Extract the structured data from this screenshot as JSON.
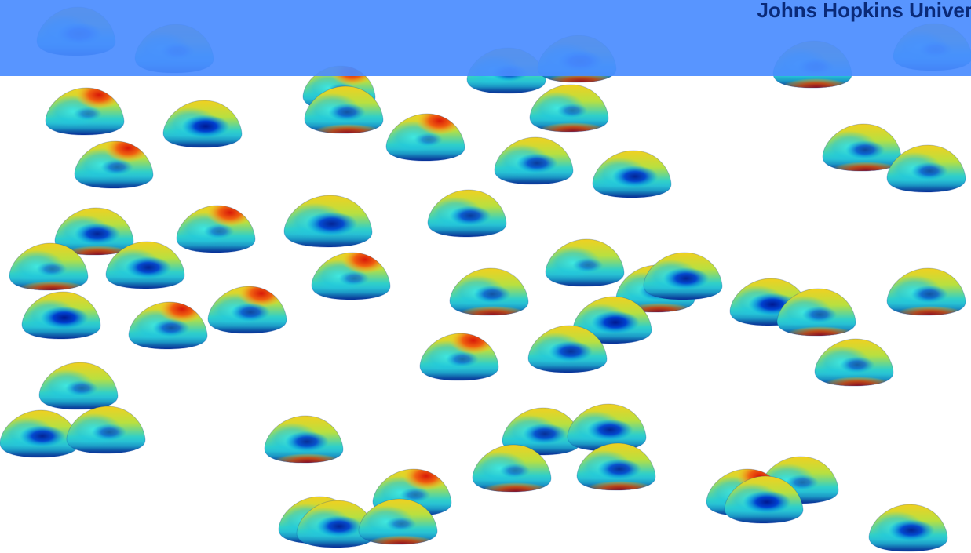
{
  "banner": {
    "text": "Johns Hopkins Univer",
    "color": "#4a8cff",
    "text_color": "#0a2a78"
  },
  "scene": {
    "subject": "colored 3D blob particles",
    "colormap": [
      "#0020a0",
      "#0050d8",
      "#00a8e0",
      "#30d8c8",
      "#b8e040",
      "#f0d020",
      "#f08020",
      "#d02010"
    ]
  }
}
